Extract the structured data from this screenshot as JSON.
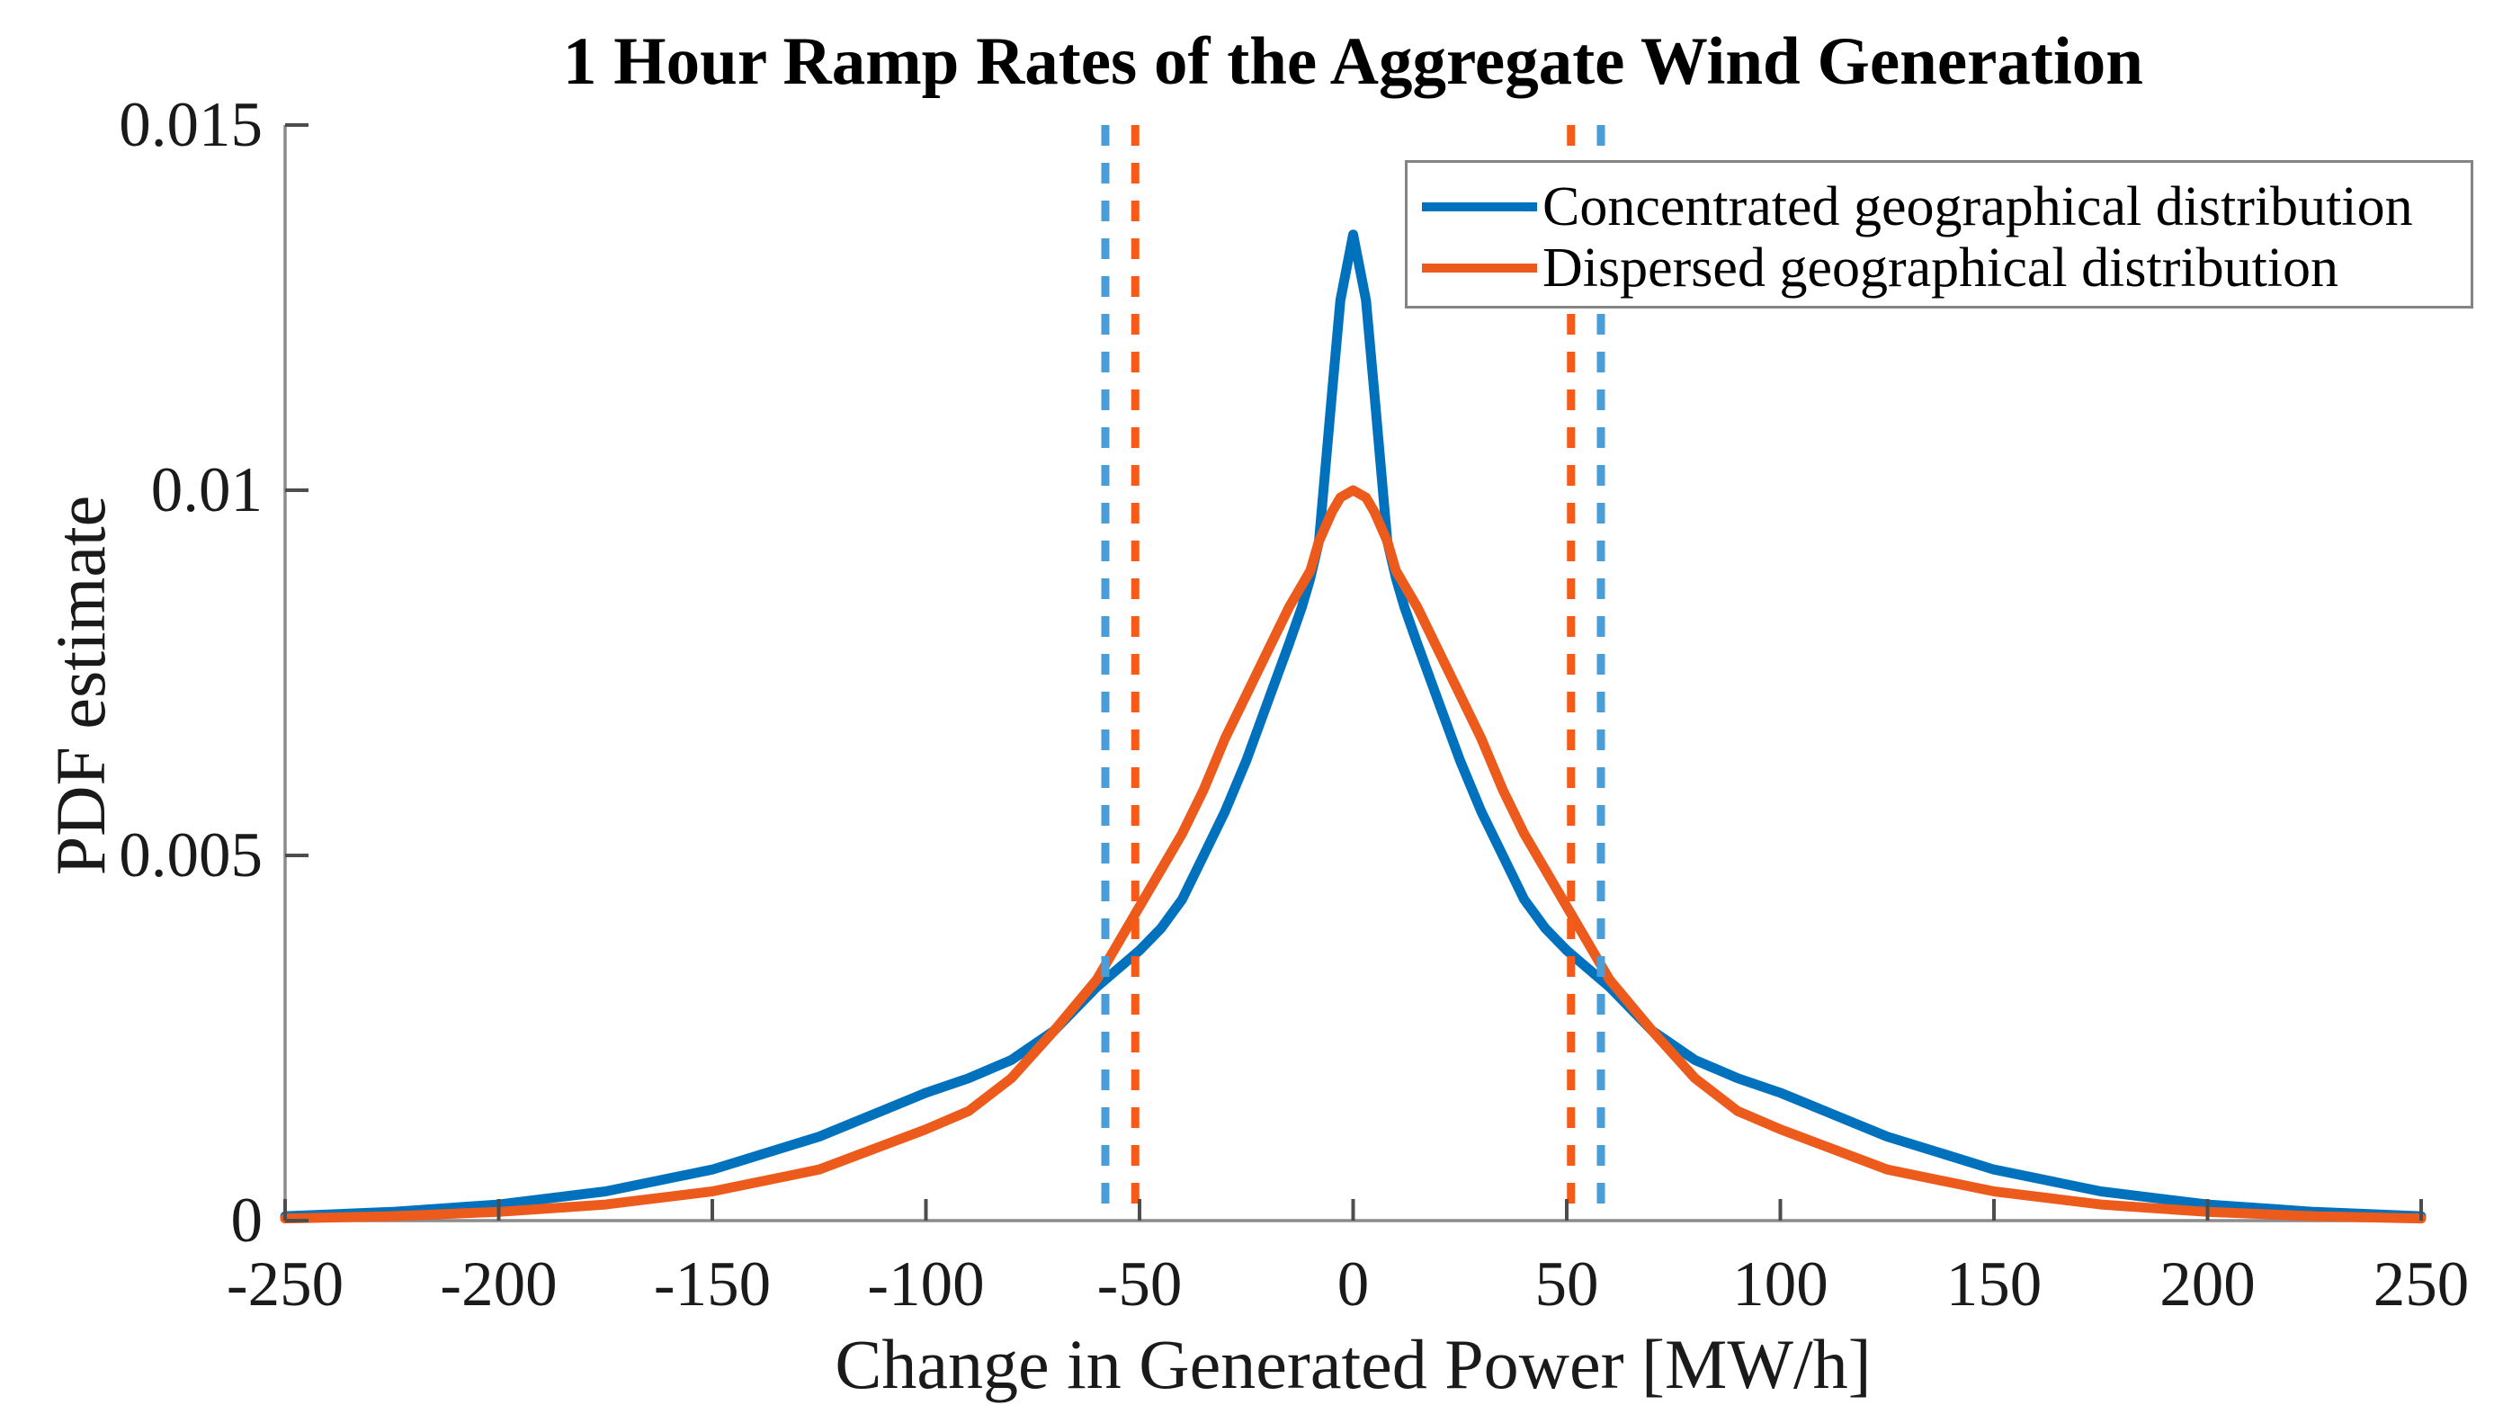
{
  "title": "1 Hour Ramp Rates of the Aggregate Wind Generation",
  "axes": {
    "xlabel": "Change in Generated Power [MW/h]",
    "ylabel": "PDF estimate",
    "xlim": [
      -250,
      250
    ],
    "ylim": [
      0,
      0.015
    ],
    "x_ticks": [
      -250,
      -200,
      -150,
      -100,
      -50,
      0,
      50,
      100,
      150,
      200,
      250
    ],
    "x_tick_labels": [
      "-250",
      "-200",
      "-150",
      "-100",
      "-50",
      "0",
      "50",
      "100",
      "150",
      "200",
      "250"
    ],
    "y_ticks": [
      0,
      0.005,
      0.01,
      0.015
    ],
    "y_tick_labels": [
      "0",
      "0.005",
      "0.01",
      "0.015"
    ],
    "grid": "off"
  },
  "legend": {
    "position": "upper-right",
    "entries": [
      {
        "label": "Concentrated geographical distribution",
        "color": "#0072BD"
      },
      {
        "label": "Dispersed geographical distribution",
        "color": "#EC5A1C"
      }
    ]
  },
  "colors": {
    "concentrated_line": "#0072BD",
    "dispersed_line": "#EC5A1C",
    "concentrated_dashed": "#4A9ED8",
    "dispersed_dashed": "#F65A18",
    "axis_line": "#8c8c8c",
    "tick_mark": "#4d4d4d",
    "text": "#1a1a1a",
    "legend_border": "#848484",
    "background": "#ffffff"
  },
  "chart_data": {
    "type": "line",
    "title": "1 Hour Ramp Rates of the Aggregate Wind Generation",
    "xlabel": "Change in Generated Power [MW/h]",
    "ylabel": "PDF estimate",
    "xlim": [
      -250,
      250
    ],
    "ylim": [
      0,
      0.015
    ],
    "legend_position": "upper-right",
    "x": [
      -250,
      -225,
      -200,
      -175,
      -150,
      -125,
      -100,
      -90,
      -80,
      -70,
      -60,
      -50,
      -45,
      -40,
      -35,
      -30,
      -25,
      -20,
      -15,
      -12,
      -10,
      -8,
      -5,
      -3,
      0,
      3,
      5,
      8,
      10,
      12,
      15,
      20,
      25,
      30,
      35,
      40,
      45,
      50,
      60,
      70,
      80,
      90,
      100,
      125,
      150,
      175,
      200,
      225,
      250
    ],
    "series": [
      {
        "name": "Concentrated geographical distribution",
        "style": "solid",
        "color": "#0072BD",
        "values": [
          6e-05,
          0.00012,
          0.00022,
          0.0004,
          0.0007,
          0.00115,
          0.00175,
          0.00195,
          0.0022,
          0.0026,
          0.0032,
          0.0037,
          0.004,
          0.0044,
          0.005,
          0.0056,
          0.0063,
          0.0071,
          0.0079,
          0.0084,
          0.0088,
          0.0093,
          0.0113,
          0.0126,
          0.0135,
          0.0126,
          0.0113,
          0.0093,
          0.0088,
          0.0084,
          0.0079,
          0.0071,
          0.0063,
          0.0056,
          0.005,
          0.0044,
          0.004,
          0.0037,
          0.0032,
          0.0026,
          0.0022,
          0.00195,
          0.00175,
          0.00115,
          0.0007,
          0.0004,
          0.00022,
          0.00012,
          6e-05
        ]
      },
      {
        "name": "Dispersed geographical distribution",
        "style": "solid",
        "color": "#EC5A1C",
        "values": [
          3e-05,
          6e-05,
          0.00012,
          0.00022,
          0.0004,
          0.0007,
          0.00125,
          0.0015,
          0.00195,
          0.0026,
          0.0033,
          0.0043,
          0.0048,
          0.0053,
          0.0059,
          0.0066,
          0.0072,
          0.0078,
          0.0084,
          0.0087,
          0.0089,
          0.0093,
          0.0097,
          0.0099,
          0.01,
          0.0099,
          0.0097,
          0.0093,
          0.0089,
          0.0087,
          0.0084,
          0.0078,
          0.0072,
          0.0066,
          0.0059,
          0.0053,
          0.0048,
          0.0043,
          0.0033,
          0.0026,
          0.00195,
          0.0015,
          0.00125,
          0.0007,
          0.0004,
          0.00022,
          0.00012,
          6e-05,
          3e-05
        ]
      }
    ],
    "vlines": [
      {
        "x": -58,
        "color": "#4A9ED8",
        "style": "dashed",
        "series": "Concentrated geographical distribution"
      },
      {
        "x": 58,
        "color": "#4A9ED8",
        "style": "dashed",
        "series": "Concentrated geographical distribution"
      },
      {
        "x": -51,
        "color": "#F65A18",
        "style": "dashed",
        "series": "Dispersed geographical distribution"
      },
      {
        "x": 51,
        "color": "#F65A18",
        "style": "dashed",
        "series": "Dispersed geographical distribution"
      }
    ]
  }
}
